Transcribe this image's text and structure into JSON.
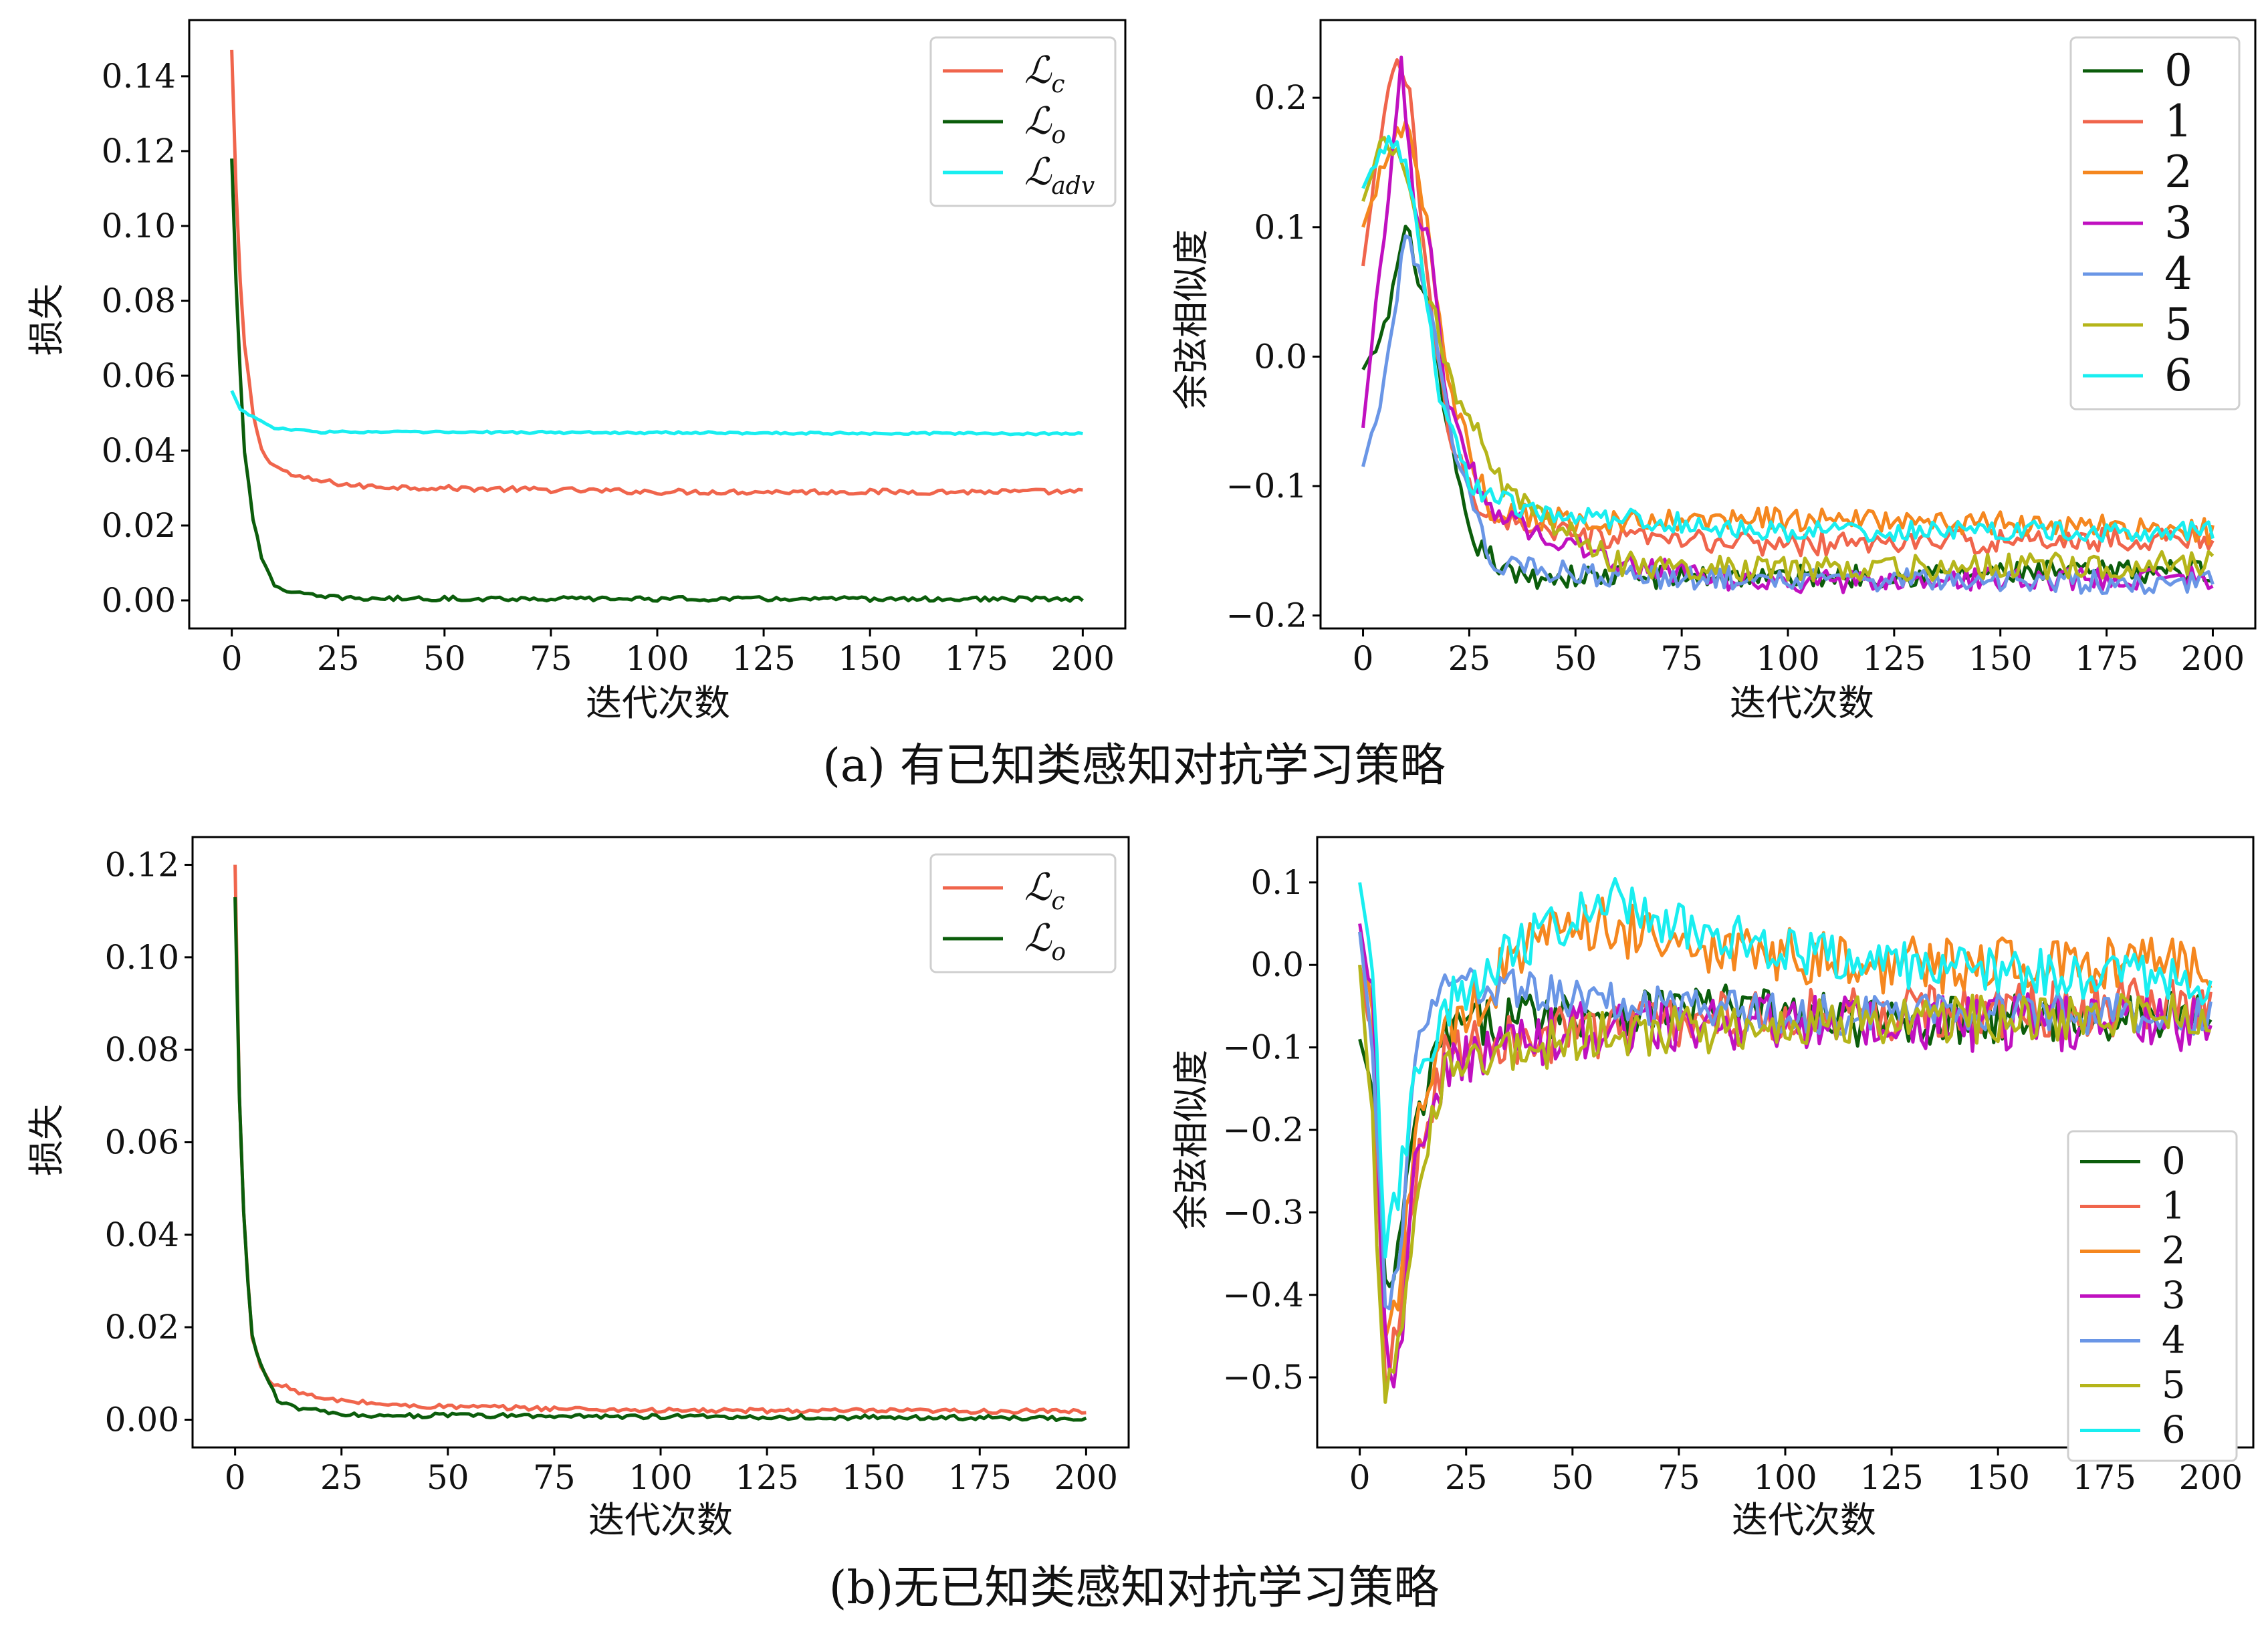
{
  "captions": {
    "a": "(a) 有已知类感知对抗学习策略",
    "b": "(b)无已知类感知对抗学习策略"
  },
  "colors": {
    "0": "#0b5d0b",
    "1": "#f0654c",
    "2": "#f5871f",
    "3": "#c010c0",
    "4": "#6a96e6",
    "5": "#b5b51a",
    "6": "#19eef0"
  },
  "chart_data": [
    {
      "id": "a_loss",
      "type": "line",
      "xlabel": "迭代次数",
      "ylabel": "损失",
      "xlim": [
        -10,
        210
      ],
      "ylim": [
        -0.0075,
        0.155
      ],
      "xticks": [
        0,
        25,
        50,
        75,
        100,
        125,
        150,
        175,
        200
      ],
      "xtick_labels": [
        "0",
        "25",
        "50",
        "75",
        "100",
        "125",
        "150",
        "175",
        "200"
      ],
      "yticks": [
        0,
        0.02,
        0.04,
        0.06,
        0.08,
        0.1,
        0.12,
        0.14
      ],
      "ytick_labels": [
        "0.00",
        "0.02",
        "0.04",
        "0.06",
        "0.08",
        "0.10",
        "0.12",
        "0.14"
      ],
      "legend_position": "top-right",
      "series": [
        {
          "name": "ℒc",
          "sym": "ℒ",
          "sub": "c",
          "color": "#f0654c",
          "points": [
            [
              0,
              0.147
            ],
            [
              1,
              0.11
            ],
            [
              2,
              0.085
            ],
            [
              3,
              0.068
            ],
            [
              5,
              0.05
            ],
            [
              7,
              0.04
            ],
            [
              10,
              0.036
            ],
            [
              15,
              0.033
            ],
            [
              20,
              0.032
            ],
            [
              30,
              0.0305
            ],
            [
              50,
              0.03
            ],
            [
              100,
              0.029
            ],
            [
              150,
              0.029
            ],
            [
              200,
              0.029
            ]
          ],
          "noise": 0.0007
        },
        {
          "name": "ℒo",
          "sym": "ℒ",
          "sub": "o",
          "color": "#0b5d0b",
          "points": [
            [
              0,
              0.118
            ],
            [
              1,
              0.085
            ],
            [
              2,
              0.06
            ],
            [
              3,
              0.04
            ],
            [
              5,
              0.022
            ],
            [
              7,
              0.011
            ],
            [
              10,
              0.004
            ],
            [
              15,
              0.002
            ],
            [
              20,
              0.001
            ],
            [
              30,
              0.0005
            ],
            [
              200,
              0.0003
            ]
          ],
          "noise": 0.0006
        },
        {
          "name": "ℒadv",
          "sym": "ℒ",
          "sub": "adv",
          "color": "#19eef0",
          "points": [
            [
              0,
              0.056
            ],
            [
              2,
              0.051
            ],
            [
              5,
              0.049
            ],
            [
              10,
              0.046
            ],
            [
              20,
              0.045
            ],
            [
              200,
              0.0445
            ]
          ],
          "noise": 0.0003
        }
      ]
    },
    {
      "id": "a_cos",
      "type": "line",
      "xlabel": "迭代次数",
      "ylabel": "余弦相似度",
      "xlim": [
        -10,
        210
      ],
      "ylim": [
        -0.21,
        0.26
      ],
      "xticks": [
        0,
        25,
        50,
        75,
        100,
        125,
        150,
        175,
        200
      ],
      "xtick_labels": [
        "0",
        "25",
        "50",
        "75",
        "100",
        "125",
        "150",
        "175",
        "200"
      ],
      "yticks": [
        -0.2,
        -0.1,
        0,
        0.1,
        0.2
      ],
      "ytick_labels": [
        "−0.2",
        "−0.1",
        "0.0",
        "0.1",
        "0.2"
      ],
      "legend_position": "top-right",
      "series": [
        {
          "name": "0",
          "color": "#0b5d0b",
          "points": [
            [
              0,
              -0.01
            ],
            [
              5,
              0.02
            ],
            [
              10,
              0.1
            ],
            [
              15,
              0.04
            ],
            [
              20,
              -0.06
            ],
            [
              25,
              -0.14
            ],
            [
              35,
              -0.17
            ],
            [
              60,
              -0.17
            ],
            [
              100,
              -0.17
            ],
            [
              200,
              -0.165
            ]
          ],
          "noise": 0.009
        },
        {
          "name": "1",
          "color": "#f0654c",
          "points": [
            [
              0,
              0.07
            ],
            [
              4,
              0.17
            ],
            [
              8,
              0.235
            ],
            [
              11,
              0.2
            ],
            [
              15,
              0.06
            ],
            [
              20,
              -0.06
            ],
            [
              28,
              -0.12
            ],
            [
              50,
              -0.14
            ],
            [
              100,
              -0.145
            ],
            [
              200,
              -0.14
            ]
          ],
          "noise": 0.009
        },
        {
          "name": "2",
          "color": "#f5871f",
          "points": [
            [
              0,
              0.1
            ],
            [
              5,
              0.15
            ],
            [
              10,
              0.185
            ],
            [
              15,
              0.1
            ],
            [
              20,
              -0.02
            ],
            [
              30,
              -0.12
            ],
            [
              60,
              -0.13
            ],
            [
              100,
              -0.125
            ],
            [
              200,
              -0.135
            ]
          ],
          "noise": 0.01
        },
        {
          "name": "3",
          "color": "#c010c0",
          "points": [
            [
              0,
              -0.055
            ],
            [
              5,
              0.1
            ],
            [
              9,
              0.225
            ],
            [
              12,
              0.12
            ],
            [
              16,
              0.08
            ],
            [
              20,
              -0.04
            ],
            [
              30,
              -0.12
            ],
            [
              60,
              -0.16
            ],
            [
              90,
              -0.175
            ],
            [
              200,
              -0.17
            ]
          ],
          "noise": 0.009
        },
        {
          "name": "4",
          "color": "#6a96e6",
          "points": [
            [
              0,
              -0.085
            ],
            [
              5,
              -0.02
            ],
            [
              10,
              0.1
            ],
            [
              15,
              0.05
            ],
            [
              22,
              -0.08
            ],
            [
              30,
              -0.16
            ],
            [
              60,
              -0.17
            ],
            [
              200,
              -0.175
            ]
          ],
          "noise": 0.009
        },
        {
          "name": "5",
          "color": "#b5b51a",
          "points": [
            [
              0,
              0.12
            ],
            [
              5,
              0.17
            ],
            [
              10,
              0.15
            ],
            [
              15,
              0.05
            ],
            [
              22,
              -0.03
            ],
            [
              35,
              -0.11
            ],
            [
              60,
              -0.16
            ],
            [
              100,
              -0.165
            ],
            [
              200,
              -0.16
            ]
          ],
          "noise": 0.01
        },
        {
          "name": "6",
          "color": "#19eef0",
          "points": [
            [
              0,
              0.13
            ],
            [
              4,
              0.16
            ],
            [
              8,
              0.17
            ],
            [
              12,
              0.12
            ],
            [
              18,
              -0.03
            ],
            [
              25,
              -0.1
            ],
            [
              40,
              -0.12
            ],
            [
              100,
              -0.135
            ],
            [
              200,
              -0.135
            ]
          ],
          "noise": 0.008
        }
      ]
    },
    {
      "id": "b_loss",
      "type": "line",
      "xlabel": "迭代次数",
      "ylabel": "损失",
      "xlim": [
        -10,
        210
      ],
      "ylim": [
        -0.006,
        0.126
      ],
      "xticks": [
        0,
        25,
        50,
        75,
        100,
        125,
        150,
        175,
        200
      ],
      "xtick_labels": [
        "0",
        "25",
        "50",
        "75",
        "100",
        "125",
        "150",
        "175",
        "200"
      ],
      "yticks": [
        0,
        0.02,
        0.04,
        0.06,
        0.08,
        0.1,
        0.12
      ],
      "ytick_labels": [
        "0.00",
        "0.02",
        "0.04",
        "0.06",
        "0.08",
        "0.10",
        "0.12"
      ],
      "legend_position": "top-right",
      "series": [
        {
          "name": "ℒc",
          "sym": "ℒ",
          "sub": "c",
          "color": "#f0654c",
          "points": [
            [
              0,
              0.12
            ],
            [
              1,
              0.07
            ],
            [
              2,
              0.045
            ],
            [
              3,
              0.03
            ],
            [
              4,
              0.018
            ],
            [
              6,
              0.012
            ],
            [
              8,
              0.008
            ],
            [
              12,
              0.007
            ],
            [
              20,
              0.0045
            ],
            [
              40,
              0.003
            ],
            [
              100,
              0.002
            ],
            [
              200,
              0.0018
            ]
          ],
          "noise": 0.0005
        },
        {
          "name": "ℒo",
          "sym": "ℒ",
          "sub": "o",
          "color": "#0b5d0b",
          "points": [
            [
              0,
              0.113
            ],
            [
              1,
              0.07
            ],
            [
              2,
              0.045
            ],
            [
              3,
              0.03
            ],
            [
              4,
              0.018
            ],
            [
              6,
              0.012
            ],
            [
              8,
              0.008
            ],
            [
              10,
              0.004
            ],
            [
              15,
              0.0025
            ],
            [
              25,
              0.001
            ],
            [
              200,
              0.0003
            ]
          ],
          "noise": 0.0005
        }
      ]
    },
    {
      "id": "b_cos",
      "type": "line",
      "xlabel": "迭代次数",
      "ylabel": "余弦相似度",
      "xlim": [
        -10,
        210
      ],
      "ylim": [
        -0.585,
        0.155
      ],
      "xticks": [
        0,
        25,
        50,
        75,
        100,
        125,
        150,
        175,
        200
      ],
      "xtick_labels": [
        "0",
        "25",
        "50",
        "75",
        "100",
        "125",
        "150",
        "175",
        "200"
      ],
      "yticks": [
        -0.5,
        -0.4,
        -0.3,
        -0.2,
        -0.1,
        0,
        0.1
      ],
      "ytick_labels": [
        "−0.5",
        "−0.4",
        "−0.3",
        "−0.2",
        "−0.1",
        "0.0",
        "0.1"
      ],
      "legend_position": "bottom-right",
      "series": [
        {
          "name": "0",
          "color": "#0b5d0b",
          "points": [
            [
              0,
              -0.09
            ],
            [
              3,
              -0.15
            ],
            [
              6,
              -0.4
            ],
            [
              9,
              -0.35
            ],
            [
              13,
              -0.2
            ],
            [
              20,
              -0.08
            ],
            [
              40,
              -0.06
            ],
            [
              80,
              -0.05
            ],
            [
              120,
              -0.07
            ],
            [
              200,
              -0.06
            ]
          ],
          "noise": 0.03
        },
        {
          "name": "1",
          "color": "#f0654c",
          "points": [
            [
              0,
              0
            ],
            [
              3,
              -0.1
            ],
            [
              6,
              -0.5
            ],
            [
              9,
              -0.45
            ],
            [
              13,
              -0.25
            ],
            [
              20,
              -0.1
            ],
            [
              50,
              -0.08
            ],
            [
              100,
              -0.06
            ],
            [
              200,
              -0.05
            ]
          ],
          "noise": 0.035
        },
        {
          "name": "2",
          "color": "#f5871f",
          "points": [
            [
              0,
              0.04
            ],
            [
              3,
              -0.05
            ],
            [
              6,
              -0.42
            ],
            [
              9,
              -0.4
            ],
            [
              13,
              -0.2
            ],
            [
              20,
              -0.08
            ],
            [
              40,
              0.02
            ],
            [
              55,
              0.05
            ],
            [
              80,
              0.02
            ],
            [
              120,
              0
            ],
            [
              200,
              0
            ]
          ],
          "noise": 0.035
        },
        {
          "name": "3",
          "color": "#c010c0",
          "points": [
            [
              0,
              0.05
            ],
            [
              3,
              -0.05
            ],
            [
              6,
              -0.45
            ],
            [
              9,
              -0.5
            ],
            [
              13,
              -0.25
            ],
            [
              20,
              -0.12
            ],
            [
              50,
              -0.08
            ],
            [
              100,
              -0.07
            ],
            [
              200,
              -0.07
            ]
          ],
          "noise": 0.035
        },
        {
          "name": "4",
          "color": "#6a96e6",
          "points": [
            [
              0,
              0.04
            ],
            [
              3,
              -0.1
            ],
            [
              6,
              -0.4
            ],
            [
              9,
              -0.38
            ],
            [
              13,
              -0.1
            ],
            [
              20,
              -0.02
            ],
            [
              50,
              -0.04
            ],
            [
              100,
              -0.06
            ],
            [
              200,
              -0.06
            ]
          ],
          "noise": 0.025
        },
        {
          "name": "5",
          "color": "#b5b51a",
          "points": [
            [
              0,
              0
            ],
            [
              3,
              -0.2
            ],
            [
              6,
              -0.55
            ],
            [
              9,
              -0.45
            ],
            [
              13,
              -0.3
            ],
            [
              20,
              -0.12
            ],
            [
              50,
              -0.09
            ],
            [
              100,
              -0.07
            ],
            [
              200,
              -0.06
            ]
          ],
          "noise": 0.03
        },
        {
          "name": "6",
          "color": "#19eef0",
          "points": [
            [
              0,
              0.1
            ],
            [
              3,
              0
            ],
            [
              6,
              -0.35
            ],
            [
              9,
              -0.28
            ],
            [
              13,
              -0.15
            ],
            [
              20,
              -0.05
            ],
            [
              40,
              0.03
            ],
            [
              60,
              0.08
            ],
            [
              80,
              0.04
            ],
            [
              120,
              0
            ],
            [
              200,
              -0.02
            ]
          ],
          "noise": 0.03
        }
      ]
    }
  ]
}
